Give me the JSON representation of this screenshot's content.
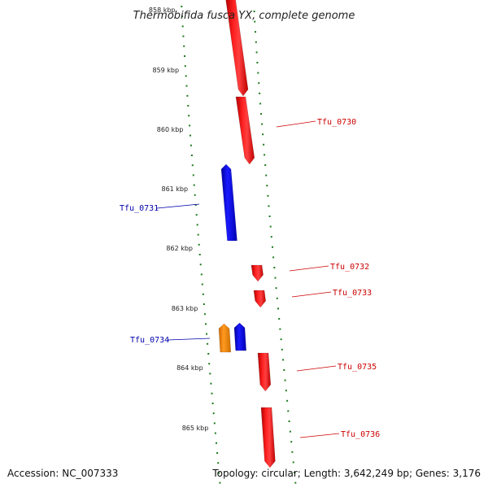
{
  "title": "Thermobifida fusca YX, complete genome",
  "footer": {
    "accession": "Accession: NC_007333",
    "topology": "Topology: circular; Length: 3,642,249 bp; Genes: 3,176"
  },
  "colors": {
    "forward": "#ff0000",
    "reverse": "#0000ff",
    "highlight": "#ff8c00",
    "tick": "#1f7a1f",
    "backbone": "#808080"
  },
  "scale_labels": [
    "858 kbp",
    "859 kbp",
    "860 kbp",
    "861 kbp",
    "862 kbp",
    "863 kbp",
    "864 kbp",
    "865 kbp"
  ],
  "genes": [
    {
      "label": "Tfu_0730",
      "strand": "forward"
    },
    {
      "label": "Tfu_0731",
      "strand": "reverse"
    },
    {
      "label": "Tfu_0732",
      "strand": "forward"
    },
    {
      "label": "Tfu_0733",
      "strand": "forward"
    },
    {
      "label": "Tfu_0734",
      "strand": "reverse"
    },
    {
      "label": "Tfu_0735",
      "strand": "forward"
    },
    {
      "label": "Tfu_0736",
      "strand": "forward"
    }
  ]
}
